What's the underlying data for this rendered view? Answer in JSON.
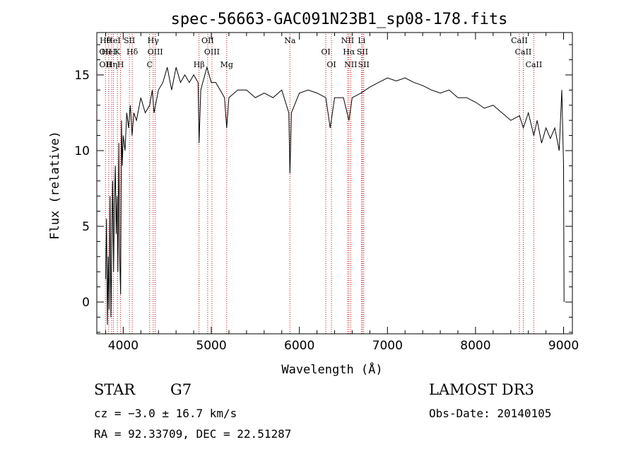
{
  "chart_data": {
    "type": "line",
    "title": "spec-56663-GAC091N23B1_sp08-178.fits",
    "xlabel": "Wavelength (Å)",
    "ylabel": "Flux (relative)",
    "xlim": [
      3700,
      9100
    ],
    "ylim": [
      -2.1,
      17.8
    ],
    "xticks": [
      4000,
      5000,
      6000,
      7000,
      8000,
      9000
    ],
    "yticks": [
      0,
      5,
      10,
      15
    ],
    "grid": false,
    "series": [
      {
        "values": [
          [
            3800,
            1.5
          ],
          [
            3810,
            5.5
          ],
          [
            3820,
            -1.5
          ],
          [
            3830,
            3.0
          ],
          [
            3840,
            -0.5
          ],
          [
            3850,
            7.0
          ],
          [
            3860,
            -1.0
          ],
          [
            3870,
            4.0
          ],
          [
            3880,
            8.0
          ],
          [
            3890,
            2.0
          ],
          [
            3900,
            6.5
          ],
          [
            3910,
            9.0
          ],
          [
            3920,
            4.5
          ],
          [
            3930,
            7.0
          ],
          [
            3940,
            2.0
          ],
          [
            3950,
            10.5
          ],
          [
            3960,
            3.0
          ],
          [
            3970,
            0.5
          ],
          [
            3980,
            12.0
          ],
          [
            3990,
            9.0
          ],
          [
            4000,
            11.0
          ],
          [
            4020,
            10.0
          ],
          [
            4040,
            12.5
          ],
          [
            4060,
            11.5
          ],
          [
            4080,
            13.0
          ],
          [
            4100,
            11.0
          ],
          [
            4120,
            12.5
          ],
          [
            4150,
            12.0
          ],
          [
            4200,
            13.5
          ],
          [
            4250,
            12.5
          ],
          [
            4300,
            13.0
          ],
          [
            4330,
            14.0
          ],
          [
            4350,
            12.5
          ],
          [
            4400,
            14.0
          ],
          [
            4450,
            14.5
          ],
          [
            4500,
            15.5
          ],
          [
            4550,
            14.0
          ],
          [
            4600,
            15.5
          ],
          [
            4650,
            14.5
          ],
          [
            4700,
            15.0
          ],
          [
            4750,
            14.5
          ],
          [
            4800,
            15.0
          ],
          [
            4850,
            14.5
          ],
          [
            4861,
            10.5
          ],
          [
            4880,
            14.0
          ],
          [
            4950,
            15.5
          ],
          [
            5000,
            14.5
          ],
          [
            5050,
            14.5
          ],
          [
            5100,
            14.0
          ],
          [
            5150,
            13.5
          ],
          [
            5175,
            11.5
          ],
          [
            5200,
            13.5
          ],
          [
            5300,
            14.0
          ],
          [
            5400,
            14.0
          ],
          [
            5500,
            13.5
          ],
          [
            5600,
            13.8
          ],
          [
            5700,
            13.5
          ],
          [
            5800,
            14.0
          ],
          [
            5880,
            12.5
          ],
          [
            5893,
            8.5
          ],
          [
            5910,
            12.5
          ],
          [
            6000,
            13.8
          ],
          [
            6100,
            14.0
          ],
          [
            6200,
            13.8
          ],
          [
            6300,
            13.5
          ],
          [
            6350,
            11.5
          ],
          [
            6400,
            13.5
          ],
          [
            6500,
            13.5
          ],
          [
            6563,
            12.0
          ],
          [
            6600,
            13.5
          ],
          [
            6700,
            13.8
          ],
          [
            6800,
            14.2
          ],
          [
            6900,
            14.5
          ],
          [
            7000,
            14.8
          ],
          [
            7100,
            14.6
          ],
          [
            7200,
            14.8
          ],
          [
            7300,
            14.5
          ],
          [
            7400,
            14.3
          ],
          [
            7500,
            14.0
          ],
          [
            7600,
            13.8
          ],
          [
            7700,
            14.0
          ],
          [
            7800,
            13.5
          ],
          [
            7900,
            13.5
          ],
          [
            8000,
            13.2
          ],
          [
            8100,
            12.8
          ],
          [
            8200,
            13.0
          ],
          [
            8300,
            12.5
          ],
          [
            8400,
            12.0
          ],
          [
            8500,
            12.3
          ],
          [
            8542,
            11.5
          ],
          [
            8600,
            12.5
          ],
          [
            8662,
            11.0
          ],
          [
            8700,
            12.0
          ],
          [
            8750,
            10.5
          ],
          [
            8800,
            11.5
          ],
          [
            8850,
            10.8
          ],
          [
            8900,
            11.5
          ],
          [
            8950,
            10.0
          ],
          [
            8980,
            14.0
          ],
          [
            9000,
            9.0
          ],
          [
            9005,
            0.0
          ]
        ]
      }
    ],
    "line_markers": [
      {
        "x": 3798,
        "labels": [
          "Hθ",
          "OII",
          "OII"
        ]
      },
      {
        "x": 3835,
        "labels": [
          "HeI"
        ]
      },
      {
        "x": 3869,
        "labels": [
          "Hη"
        ]
      },
      {
        "x": 3889,
        "labels": [
          "HeI"
        ]
      },
      {
        "x": 3934,
        "labels": [
          "K"
        ]
      },
      {
        "x": 3970,
        "labels": [
          "H"
        ]
      },
      {
        "x": 4070,
        "labels": [
          "SII"
        ]
      },
      {
        "x": 4102,
        "labels": [
          "Hδ"
        ]
      },
      {
        "x": 4300,
        "labels": [
          "C"
        ]
      },
      {
        "x": 4340,
        "labels": [
          "Hγ"
        ]
      },
      {
        "x": 4363,
        "labels": [
          "OIII"
        ]
      },
      {
        "x": 4861,
        "labels": [
          "Hβ"
        ]
      },
      {
        "x": 4959,
        "labels": [
          "OII"
        ]
      },
      {
        "x": 5007,
        "labels": [
          "OIII"
        ]
      },
      {
        "x": 5175,
        "labels": [
          "Mg"
        ]
      },
      {
        "x": 5893,
        "labels": [
          "Na"
        ]
      },
      {
        "x": 6300,
        "labels": [
          "OI"
        ]
      },
      {
        "x": 6364,
        "labels": [
          "OI"
        ]
      },
      {
        "x": 6548,
        "labels": [
          "NII"
        ]
      },
      {
        "x": 6563,
        "labels": [
          "Hα"
        ]
      },
      {
        "x": 6583,
        "labels": [
          "NII"
        ]
      },
      {
        "x": 6707,
        "labels": [
          "Li"
        ]
      },
      {
        "x": 6716,
        "labels": [
          "SII"
        ]
      },
      {
        "x": 6731,
        "labels": [
          "SII"
        ]
      },
      {
        "x": 8498,
        "labels": [
          "CaII"
        ]
      },
      {
        "x": 8542,
        "labels": [
          "CaII"
        ]
      },
      {
        "x": 8662,
        "labels": [
          "CaII"
        ]
      }
    ]
  },
  "info": {
    "class": "STAR",
    "subclass": "G7",
    "survey": "LAMOST DR3",
    "cz": "cz = −3.0 ± 16.7 km/s",
    "obs_date": "Obs-Date: 20140105",
    "coords": "RA =  92.33709, DEC =  22.51287"
  },
  "colors": {
    "spectrum": "#000000",
    "marker_lines": "#cc0000",
    "axes": "#000000"
  }
}
